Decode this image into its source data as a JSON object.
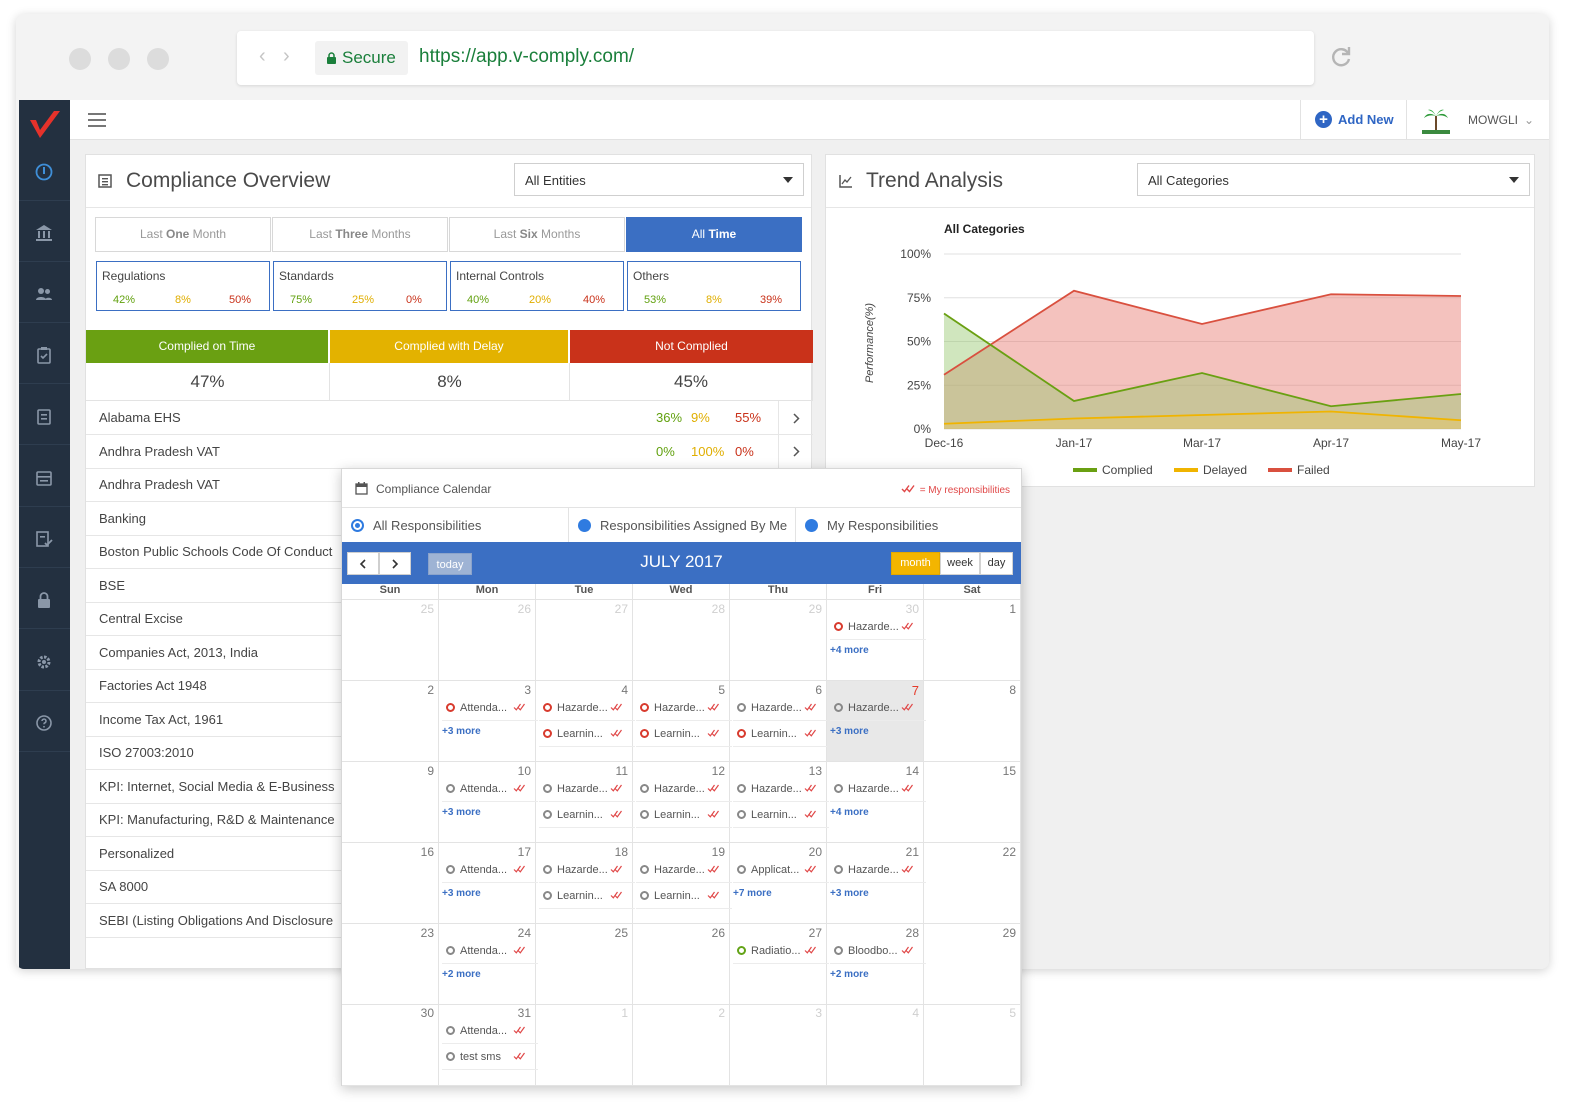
{
  "browser": {
    "secure_label": "Secure",
    "url": "https://app.v-comply.com/"
  },
  "topbar": {
    "add_new": "Add New",
    "user": "MOWGLI"
  },
  "overview": {
    "title": "Compliance Overview",
    "entity_select": "All Entities",
    "periods": [
      {
        "pre": "Last ",
        "bold": "One",
        "post": " Month"
      },
      {
        "pre": "Last ",
        "bold": "Three",
        "post": " Months"
      },
      {
        "pre": "Last ",
        "bold": "Six",
        "post": " Months"
      },
      {
        "pre": "All ",
        "bold": "Time",
        "post": ""
      }
    ],
    "active_period": 3,
    "categories": [
      {
        "name": "Regulations",
        "green": "42%",
        "yellow": "8%",
        "red": "50%"
      },
      {
        "name": "Standards",
        "green": "75%",
        "yellow": "25%",
        "red": "0%"
      },
      {
        "name": "Internal Controls",
        "green": "40%",
        "yellow": "20%",
        "red": "40%"
      },
      {
        "name": "Others",
        "green": "53%",
        "yellow": "8%",
        "red": "39%"
      }
    ],
    "status": [
      {
        "label": "Complied on Time",
        "value": "47%",
        "color": "#6aa012"
      },
      {
        "label": "Complied with Delay",
        "value": "8%",
        "color": "#e3b200"
      },
      {
        "label": "Not Complied",
        "value": "45%",
        "color": "#c9321a"
      }
    ],
    "regulations": [
      {
        "name": "Alabama EHS",
        "green": "36%",
        "yellow": "9%",
        "red": "55%"
      },
      {
        "name": "Andhra Pradesh VAT",
        "green": "0%",
        "yellow": "100%",
        "red": "0%"
      },
      {
        "name": "Andhra Pradesh VAT"
      },
      {
        "name": "Banking"
      },
      {
        "name": "Boston Public Schools Code Of Conduct"
      },
      {
        "name": "BSE"
      },
      {
        "name": "Central Excise"
      },
      {
        "name": "Companies Act, 2013, India"
      },
      {
        "name": "Factories Act 1948"
      },
      {
        "name": "Income Tax Act, 1961"
      },
      {
        "name": "ISO 27003:2010"
      },
      {
        "name": "KPI: Internet, Social Media & E-Business"
      },
      {
        "name": "KPI: Manufacturing, R&D & Maintenance"
      },
      {
        "name": "Personalized"
      },
      {
        "name": "SA 8000"
      },
      {
        "name": "SEBI (Listing Obligations And Disclosure"
      }
    ]
  },
  "trend": {
    "title": "Trend Analysis",
    "category_select": "All Categories"
  },
  "chart_data": {
    "type": "area",
    "title": "All Categories",
    "ylabel": "Performance(%)",
    "xlabel": "",
    "x": [
      "Dec-16",
      "Jan-17",
      "Mar-17",
      "Apr-17",
      "May-17"
    ],
    "y_ticks": [
      "0%",
      "25%",
      "50%",
      "75%",
      "100%"
    ],
    "ylim": [
      0,
      100
    ],
    "series": [
      {
        "name": "Complied",
        "color": "#6aa012",
        "values": [
          66,
          16,
          32,
          13,
          20
        ]
      },
      {
        "name": "Delayed",
        "color": "#f0b400",
        "values": [
          3,
          6,
          8,
          10,
          5
        ]
      },
      {
        "name": "Failed",
        "color": "#d9503f",
        "values": [
          31,
          79,
          60,
          77,
          76
        ]
      }
    ],
    "legend_position": "bottom",
    "grid": true
  },
  "calendar": {
    "title": "Compliance Calendar",
    "legend": "= My responsibilities",
    "filters": [
      "All Responsibilities",
      "Responsibilities Assigned By Me",
      "My Responsibilities"
    ],
    "today_label": "today",
    "month_label": "JULY 2017",
    "views": [
      "month",
      "week",
      "day"
    ],
    "days_of_week": [
      "Sun",
      "Mon",
      "Tue",
      "Wed",
      "Thu",
      "Fri",
      "Sat"
    ],
    "weeks": [
      [
        {
          "n": "25",
          "other": true
        },
        {
          "n": "26",
          "other": true
        },
        {
          "n": "27",
          "other": true
        },
        {
          "n": "28",
          "other": true
        },
        {
          "n": "29",
          "other": true
        },
        {
          "n": "30",
          "other": true,
          "events": [
            {
              "t": "Hazarde...",
              "c": "red"
            }
          ],
          "more": "+4 more"
        },
        {
          "n": "1"
        }
      ],
      [
        {
          "n": "2"
        },
        {
          "n": "3",
          "events": [
            {
              "t": "Attenda...",
              "c": "red"
            }
          ],
          "more": "+3 more"
        },
        {
          "n": "4",
          "events": [
            {
              "t": "Hazarde...",
              "c": "red"
            },
            {
              "t": "Learnin...",
              "c": "red"
            }
          ]
        },
        {
          "n": "5",
          "events": [
            {
              "t": "Hazarde...",
              "c": "red"
            },
            {
              "t": "Learnin...",
              "c": "red"
            }
          ]
        },
        {
          "n": "6",
          "events": [
            {
              "t": "Hazarde...",
              "c": "grey"
            },
            {
              "t": "Learnin...",
              "c": "red"
            }
          ]
        },
        {
          "n": "7",
          "today": true,
          "events": [
            {
              "t": "Hazarde...",
              "c": "grey"
            }
          ],
          "more": "+3 more"
        },
        {
          "n": "8"
        }
      ],
      [
        {
          "n": "9"
        },
        {
          "n": "10",
          "events": [
            {
              "t": "Attenda...",
              "c": "grey"
            }
          ],
          "more": "+3 more"
        },
        {
          "n": "11",
          "events": [
            {
              "t": "Hazarde...",
              "c": "grey"
            },
            {
              "t": "Learnin...",
              "c": "grey"
            }
          ]
        },
        {
          "n": "12",
          "events": [
            {
              "t": "Hazarde...",
              "c": "grey"
            },
            {
              "t": "Learnin...",
              "c": "grey"
            }
          ]
        },
        {
          "n": "13",
          "events": [
            {
              "t": "Hazarde...",
              "c": "grey"
            },
            {
              "t": "Learnin...",
              "c": "grey"
            }
          ]
        },
        {
          "n": "14",
          "events": [
            {
              "t": "Hazarde...",
              "c": "grey"
            }
          ],
          "more": "+4 more"
        },
        {
          "n": "15"
        }
      ],
      [
        {
          "n": "16"
        },
        {
          "n": "17",
          "events": [
            {
              "t": "Attenda...",
              "c": "grey"
            }
          ],
          "more": "+3 more"
        },
        {
          "n": "18",
          "events": [
            {
              "t": "Hazarde...",
              "c": "grey"
            },
            {
              "t": "Learnin...",
              "c": "grey"
            }
          ]
        },
        {
          "n": "19",
          "events": [
            {
              "t": "Hazarde...",
              "c": "grey"
            },
            {
              "t": "Learnin...",
              "c": "grey"
            }
          ]
        },
        {
          "n": "20",
          "events": [
            {
              "t": "Applicat...",
              "c": "grey"
            }
          ],
          "more": "+7 more"
        },
        {
          "n": "21",
          "events": [
            {
              "t": "Hazarde...",
              "c": "grey"
            }
          ],
          "more": "+3 more"
        },
        {
          "n": "22"
        }
      ],
      [
        {
          "n": "23"
        },
        {
          "n": "24",
          "events": [
            {
              "t": "Attenda...",
              "c": "grey"
            }
          ],
          "more": "+2 more"
        },
        {
          "n": "25"
        },
        {
          "n": "26"
        },
        {
          "n": "27",
          "events": [
            {
              "t": "Radiatio...",
              "c": "green"
            }
          ]
        },
        {
          "n": "28",
          "events": [
            {
              "t": "Bloodbo...",
              "c": "grey"
            }
          ],
          "more": "+2 more"
        },
        {
          "n": "29"
        }
      ],
      [
        {
          "n": "30"
        },
        {
          "n": "31",
          "events": [
            {
              "t": "Attenda...",
              "c": "grey"
            },
            {
              "t": "test sms",
              "c": "grey"
            }
          ]
        },
        {
          "n": "1",
          "other": true
        },
        {
          "n": "2",
          "other": true
        },
        {
          "n": "3",
          "other": true
        },
        {
          "n": "4",
          "other": true
        },
        {
          "n": "5",
          "other": true
        }
      ]
    ]
  },
  "sidebar": {
    "icons": [
      "dashboard-icon",
      "bank-icon",
      "users-icon",
      "clipboard-check-icon",
      "task-icon",
      "report-icon",
      "audit-icon",
      "lock-icon",
      "settings-icon",
      "help-icon"
    ]
  }
}
